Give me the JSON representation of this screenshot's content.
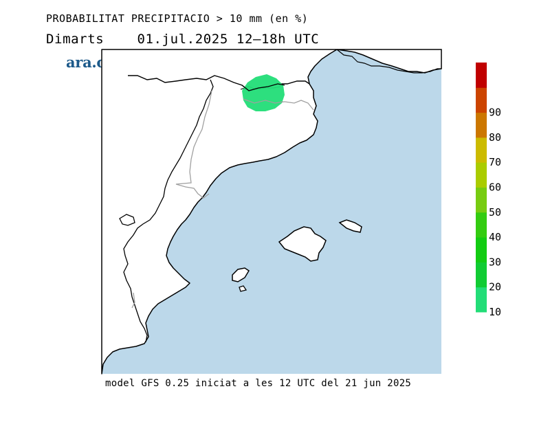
{
  "header": {
    "title": "PROBABILITAT PRECIPITACIO > 10 mm (en %)",
    "day": "Dimarts",
    "datetime": "01.jul.2025 12–18h UTC"
  },
  "brand": {
    "logo_text": "ara.cat",
    "color": "#1d5a8a"
  },
  "map": {
    "sea_color": "#bcd8ea",
    "land_color": "#ffffff",
    "probability_area": {
      "min_probability_percent": 10,
      "max_probability_percent": 20,
      "region": "Pyrenees"
    }
  },
  "legend": {
    "bins": [
      {
        "label": "10",
        "color": "#22dd77"
      },
      {
        "label": "20",
        "color": "#10cc33"
      },
      {
        "label": "30",
        "color": "#12cc12"
      },
      {
        "label": "40",
        "color": "#33cc11"
      },
      {
        "label": "50",
        "color": "#77cc11"
      },
      {
        "label": "60",
        "color": "#aacc00"
      },
      {
        "label": "70",
        "color": "#ccbb00"
      },
      {
        "label": "80",
        "color": "#cc7700"
      },
      {
        "label": "90",
        "color": "#cc4400"
      },
      {
        "label": "",
        "color": "#c00000"
      }
    ]
  },
  "footer": {
    "text": "model GFS 0.25 iniciat a les 12 UTC del 21 jun 2025"
  }
}
